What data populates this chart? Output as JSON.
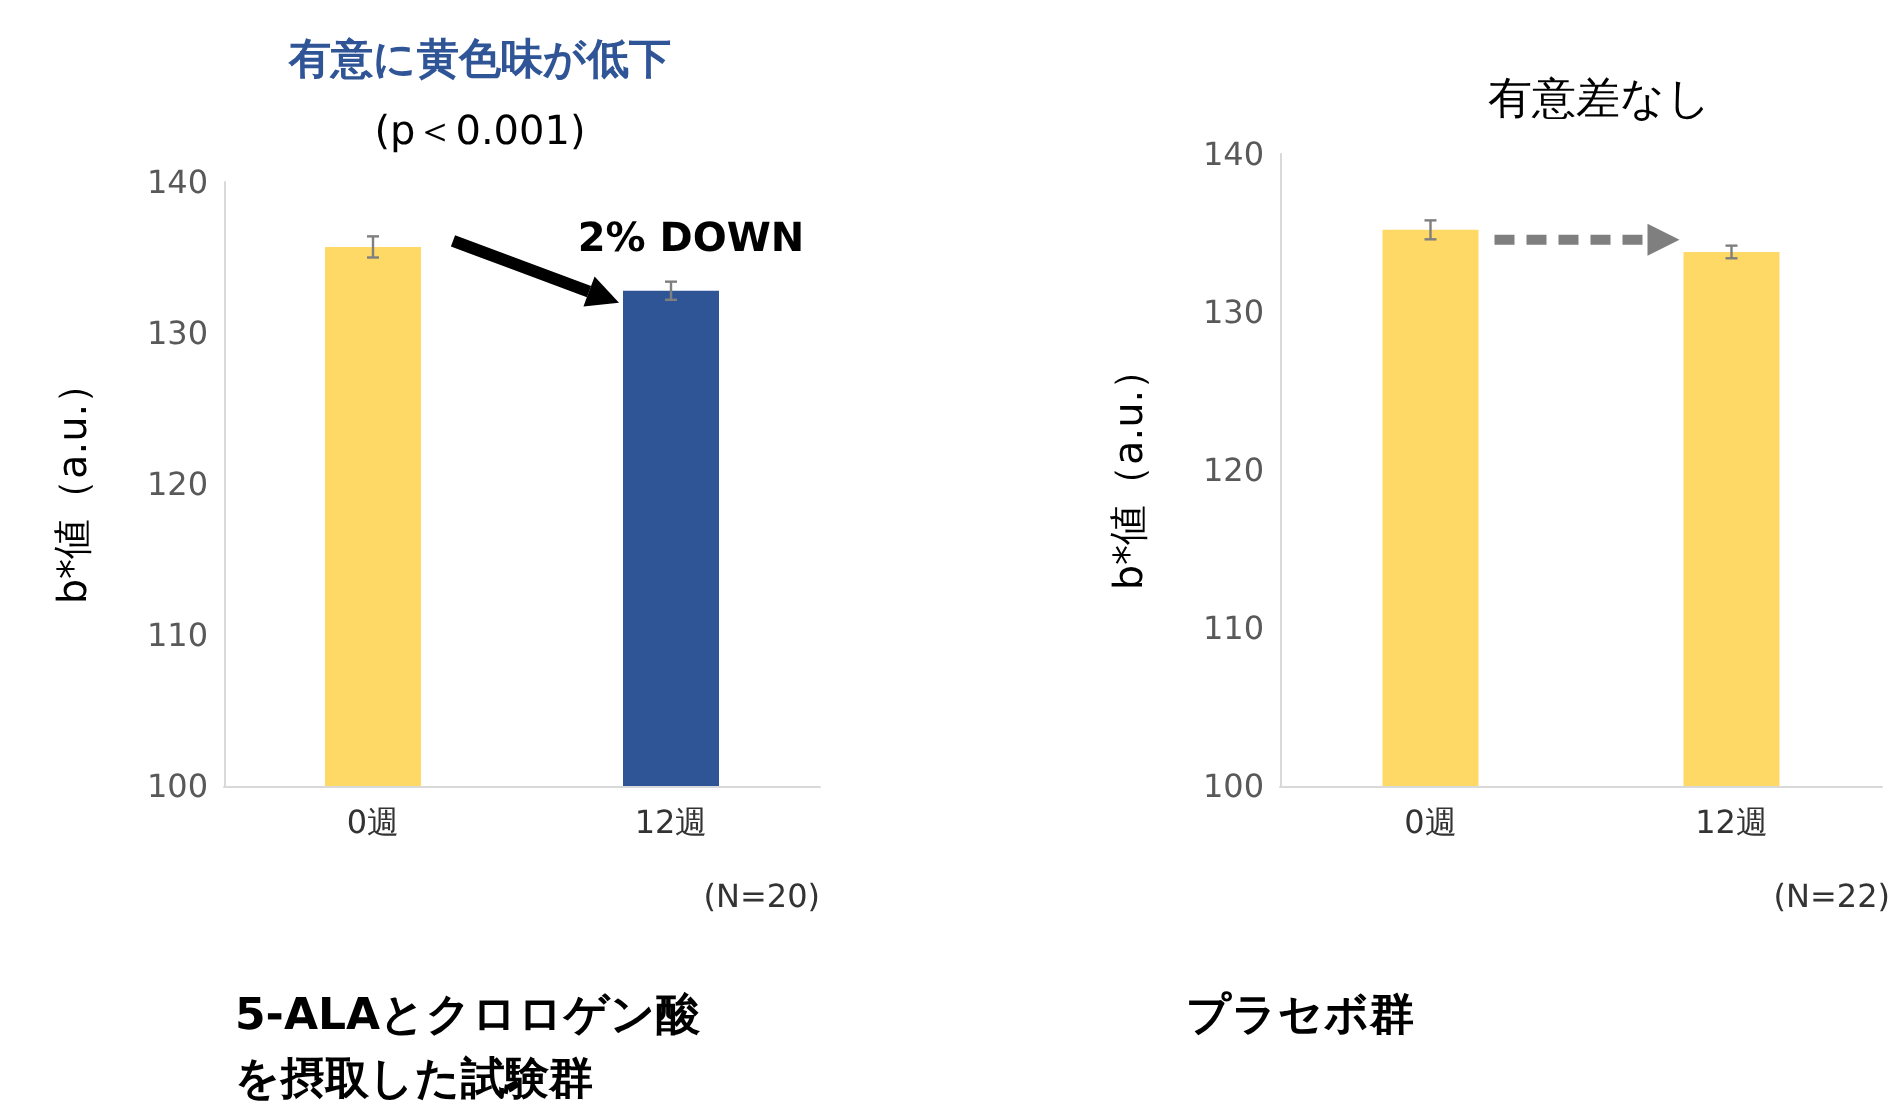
{
  "chart_data": [
    {
      "type": "bar",
      "title": "有意に黄色味が低下",
      "subtitle": "(p＜0.001)",
      "ylabel": "b*値（a.u.）",
      "categories": [
        "0週",
        "12週"
      ],
      "values": [
        135.7,
        132.8
      ],
      "errors": [
        0.7,
        0.6
      ],
      "colors": [
        "#ffd966",
        "#2f5597"
      ],
      "ylim": [
        100,
        140
      ],
      "yticks": [
        100,
        110,
        120,
        130,
        140
      ],
      "annotations": [
        {
          "text": "2% DOWN",
          "x": "12週",
          "y": 132.8
        },
        "(N=20)",
        "5-ALAとクロロゲン酸を摂取した試験群"
      ]
    },
    {
      "type": "bar",
      "title": "有意差なし",
      "ylabel": "b*値（a.u.）",
      "categories": [
        "0週",
        "12週"
      ],
      "values": [
        135.2,
        133.8
      ],
      "errors": [
        0.6,
        0.4
      ],
      "colors": [
        "#ffd966",
        "#ffd966"
      ],
      "ylim": [
        100,
        140
      ],
      "yticks": [
        100,
        110,
        120,
        130,
        140
      ],
      "annotations": [
        "(N=22)",
        "プラセボ群"
      ]
    }
  ]
}
